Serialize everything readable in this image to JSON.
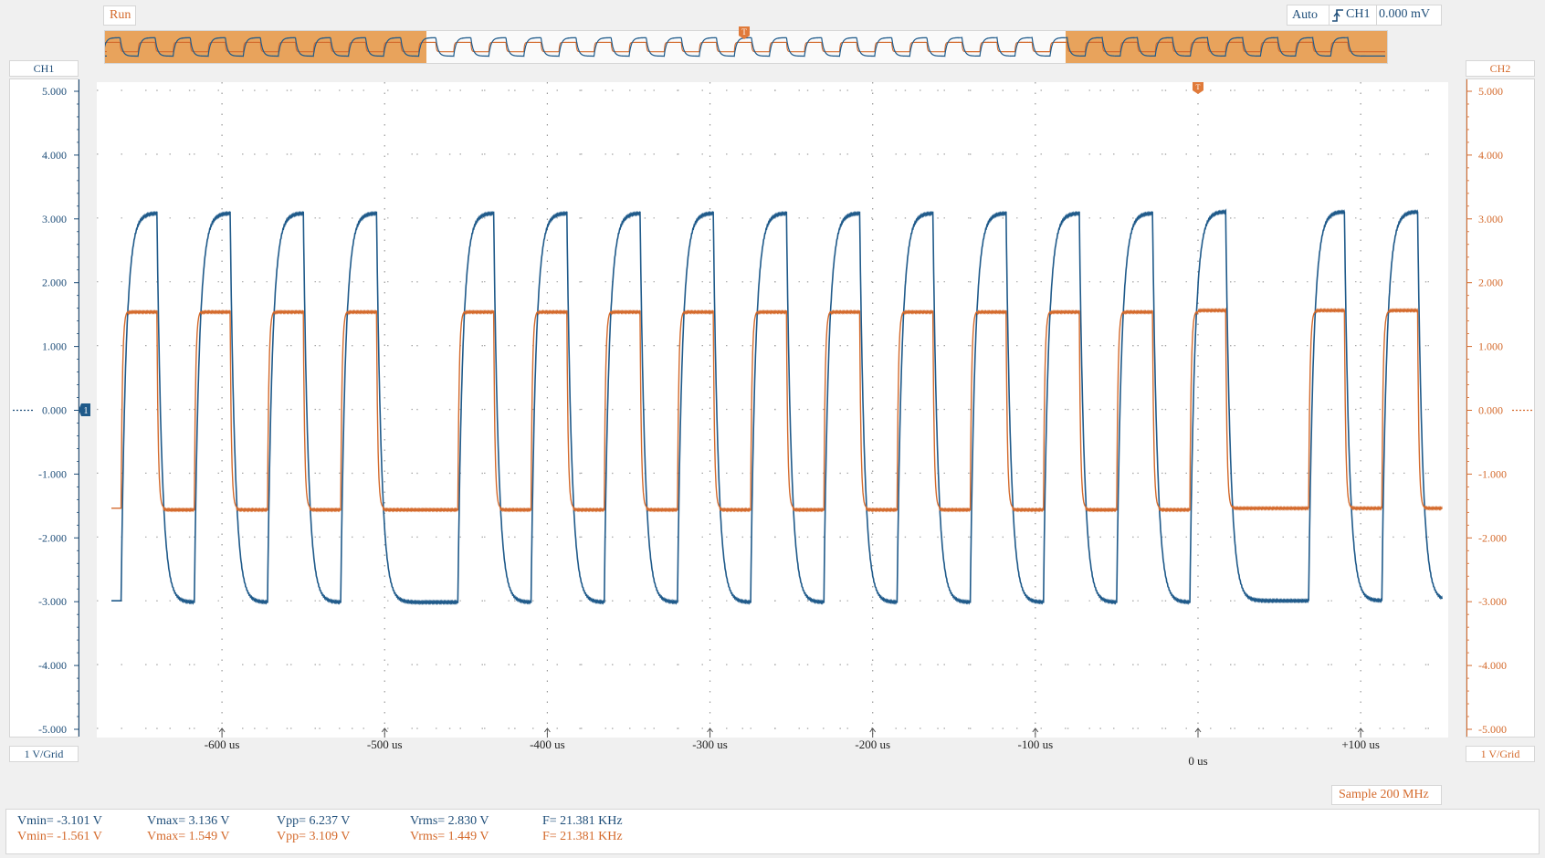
{
  "status": {
    "run": "Run"
  },
  "trigger": {
    "mode": "Auto",
    "icon": "rising-edge-icon",
    "source": "CH1",
    "level": "0.000 mV",
    "marker": "T"
  },
  "channels": {
    "ch1": {
      "label": "CH1",
      "scale": "1 V/Grid",
      "color": "#1f5a8a"
    },
    "ch2": {
      "label": "CH2",
      "scale": "1 V/Grid",
      "color": "#d46a2c"
    }
  },
  "y_ticks": [
    "5.000",
    "4.000",
    "3.000",
    "2.000",
    "1.000",
    "0.000",
    "-1.000",
    "-2.000",
    "-3.000",
    "-4.000",
    "-5.000"
  ],
  "time_labels": [
    "-600 us",
    "-500 us",
    "-400 us",
    "-300 us",
    "-200 us",
    "-100 us",
    "0 us",
    "+100 us"
  ],
  "sample": "Sample 200 MHz",
  "measurements": {
    "ch1": {
      "vmin": "Vmin= -3.101 V",
      "vmax": "Vmax= 3.136 V",
      "vpp": "Vpp= 6.237 V",
      "vrms": "Vrms= 2.830 V",
      "freq": "F= 21.381 KHz"
    },
    "ch2": {
      "vmin": "Vmin= -1.561 V",
      "vmax": "Vmax= 1.549 V",
      "vpp": "Vpp= 3.109 V",
      "vrms": "Vrms= 1.449 V",
      "freq": "F= 21.381 KHz"
    }
  },
  "chart_data": {
    "type": "line",
    "xlabel": "",
    "ylabel": "",
    "xlim_us": [
      -666,
      150
    ],
    "ylim": [
      -5,
      5
    ],
    "grid": true,
    "pulses": {
      "note": "",
      "rise_us": [
        -662,
        -617,
        -572,
        -527,
        -455,
        -410,
        -365,
        -320,
        -275,
        -230,
        -185,
        -140,
        -95,
        -50,
        -5,
        68,
        113
      ],
      "fall_us": [
        -640,
        -595,
        -550,
        -505,
        -433,
        -388,
        -343,
        -298,
        -253,
        -208,
        -163,
        -118,
        -73,
        -28,
        17,
        90,
        135
      ]
    },
    "series": [
      {
        "name": "CH1",
        "high": 3.1,
        "low": -3.0,
        "tau_us": 3.0
      },
      {
        "name": "CH2",
        "high": 1.55,
        "low": -1.55,
        "tau_us": 0.8
      }
    ]
  }
}
